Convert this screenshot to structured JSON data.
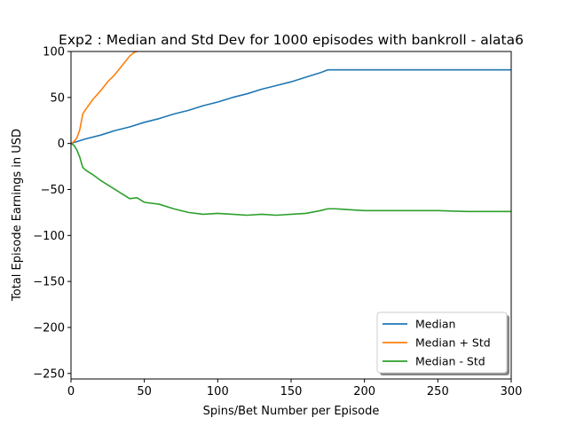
{
  "chart_data": {
    "type": "line",
    "title": "Exp2 : Median and Std Dev for 1000 episodes with bankroll - alata6",
    "xlabel": "Spins/Bet Number per Episode",
    "ylabel": "Total Episode Earnings in USD",
    "xlim": [
      0,
      300
    ],
    "ylim": [
      -256,
      100
    ],
    "xticks": [
      0,
      50,
      100,
      150,
      200,
      250,
      300
    ],
    "yticks": [
      -250,
      -200,
      -150,
      -100,
      -50,
      0,
      50,
      100
    ],
    "xtick_labels": [
      "0",
      "50",
      "100",
      "150",
      "200",
      "250",
      "300"
    ],
    "ytick_labels": [
      "−250",
      "−200",
      "−150",
      "−100",
      "−50",
      "0",
      "50",
      "100"
    ],
    "legend_position": "lower-right",
    "grid": false,
    "series": [
      {
        "name": "Median",
        "color": "#1f77b4",
        "x": [
          0,
          10,
          20,
          30,
          40,
          50,
          60,
          70,
          80,
          90,
          100,
          110,
          120,
          130,
          140,
          150,
          160,
          170,
          175,
          180,
          200,
          250,
          300
        ],
        "y": [
          0,
          5,
          9,
          14,
          18,
          23,
          27,
          32,
          36,
          41,
          45,
          50,
          54,
          59,
          63,
          67,
          72,
          77,
          80,
          80,
          80,
          80,
          80
        ]
      },
      {
        "name": "Median + Std",
        "color": "#ff7f0e",
        "x": [
          0,
          2,
          4,
          6,
          8,
          10,
          15,
          20,
          25,
          30,
          35,
          40,
          43,
          45
        ],
        "y": [
          0,
          2,
          6,
          15,
          32,
          37,
          48,
          57,
          67,
          75,
          85,
          95,
          99,
          100
        ]
      },
      {
        "name": "Median - Std",
        "color": "#2ca02c",
        "x": [
          0,
          2,
          4,
          6,
          8,
          10,
          15,
          20,
          25,
          30,
          35,
          40,
          45,
          50,
          60,
          70,
          80,
          90,
          100,
          110,
          120,
          130,
          140,
          150,
          160,
          170,
          175,
          180,
          190,
          200,
          220,
          250,
          270,
          300
        ],
        "y": [
          0,
          -2,
          -7,
          -15,
          -26,
          -29,
          -34,
          -40,
          -45,
          -50,
          -55,
          -60,
          -59,
          -64,
          -66,
          -71,
          -75,
          -77,
          -76,
          -77,
          -78,
          -77,
          -78,
          -77,
          -76,
          -73,
          -71,
          -71,
          -72,
          -73,
          -73,
          -73,
          -74,
          -74
        ]
      }
    ]
  }
}
